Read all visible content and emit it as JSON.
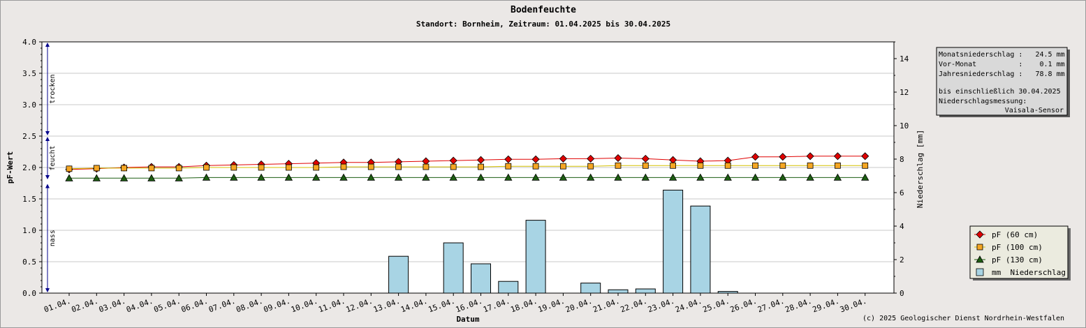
{
  "colors": {
    "background": "#ebe8e6",
    "plot_background": "#ffffff",
    "grid": "#c8c8c8",
    "pf60": "#e00000",
    "pf100": "#f5a623",
    "pf100_line": "#d4c000",
    "pf130": "#1d5e12",
    "bars": "#a8d4e4",
    "zone_arrows": "#00008b",
    "legend_bg": "#ebebdf",
    "info_bg": "#d9d9d9"
  },
  "chart_data": {
    "type": "line",
    "title": "Bodenfeuchte",
    "subtitle": "Standort: Bornheim, Zeitraum: 01.04.2025 bis 30.04.2025",
    "xlabel": "Datum",
    "ylabel": "pF-Wert",
    "y2label": "Niederschlag [mm]",
    "ylim": [
      0,
      4
    ],
    "y_ticks": [
      "0.0",
      "0.5",
      "1.0",
      "1.5",
      "2.0",
      "2.5",
      "3.0",
      "3.5",
      "4.0"
    ],
    "y2lim": [
      0,
      15
    ],
    "y2_ticks": [
      "0",
      "2",
      "4",
      "6",
      "8",
      "10",
      "12",
      "14"
    ],
    "grid": true,
    "legend_position": "right",
    "categories": [
      "01.04.",
      "02.04.",
      "03.04.",
      "04.04.",
      "05.04.",
      "06.04.",
      "07.04.",
      "08.04.",
      "09.04.",
      "10.04.",
      "11.04.",
      "12.04.",
      "13.04.",
      "14.04.",
      "15.04.",
      "16.04.",
      "17.04.",
      "18.04.",
      "19.04.",
      "20.04.",
      "21.04.",
      "22.04.",
      "23.04.",
      "24.04.",
      "25.04.",
      "26.04.",
      "27.04.",
      "28.04.",
      "29.04.",
      "30.04."
    ],
    "series": [
      {
        "name": "pF (60 cm)",
        "marker": "diamond",
        "axis": "left",
        "values": [
          1.97,
          1.98,
          2.0,
          2.01,
          2.01,
          2.03,
          2.04,
          2.05,
          2.06,
          2.07,
          2.08,
          2.08,
          2.09,
          2.1,
          2.11,
          2.12,
          2.13,
          2.13,
          2.14,
          2.14,
          2.15,
          2.14,
          2.12,
          2.1,
          2.11,
          2.17,
          2.17,
          2.18,
          2.18,
          2.18
        ]
      },
      {
        "name": "pF (100 cm)",
        "marker": "square",
        "axis": "left",
        "values": [
          1.98,
          1.99,
          1.99,
          1.99,
          1.99,
          2.0,
          2.0,
          2.0,
          2.0,
          2.0,
          2.01,
          2.01,
          2.01,
          2.01,
          2.01,
          2.01,
          2.02,
          2.02,
          2.02,
          2.02,
          2.03,
          2.03,
          2.03,
          2.03,
          2.03,
          2.03,
          2.03,
          2.03,
          2.03,
          2.03
        ]
      },
      {
        "name": "pF (130 cm)",
        "marker": "triangle",
        "axis": "left",
        "values": [
          1.83,
          1.83,
          1.83,
          1.83,
          1.83,
          1.84,
          1.84,
          1.84,
          1.84,
          1.84,
          1.84,
          1.84,
          1.84,
          1.84,
          1.84,
          1.84,
          1.84,
          1.84,
          1.84,
          1.84,
          1.84,
          1.84,
          1.84,
          1.84,
          1.84,
          1.84,
          1.84,
          1.84,
          1.84,
          1.84
        ]
      },
      {
        "name": "mm  Niederschlag",
        "type": "bar",
        "axis": "right",
        "values": [
          0,
          0,
          0,
          0,
          0,
          0,
          0,
          0,
          0,
          0,
          0,
          0,
          2.2,
          0,
          3.0,
          1.75,
          0.7,
          4.35,
          0,
          0.6,
          0.2,
          0.25,
          6.15,
          5.2,
          0.1,
          0,
          0,
          0,
          0,
          0
        ]
      }
    ],
    "zones": [
      {
        "label": "trocken",
        "from": 2.5,
        "to": 4.0
      },
      {
        "label": "feucht",
        "from": 1.8,
        "to": 2.5
      },
      {
        "label": "nass",
        "from": 0.0,
        "to": 1.75
      }
    ]
  },
  "info_box": {
    "line1": "Monatsniederschlag :   24.5 mm",
    "line2": "Vor-Monat          :    0.1 mm",
    "line3": "Jahresniederschlag :   78.8 mm",
    "line4": "bis einschließlich 30.04.2025",
    "line5": "Niederschlagsmessung:",
    "line6": "Vaisala-Sensor"
  },
  "footer": {
    "copyright": "(c) 2025 Geologischer Dienst Nordrhein-Westfalen"
  }
}
